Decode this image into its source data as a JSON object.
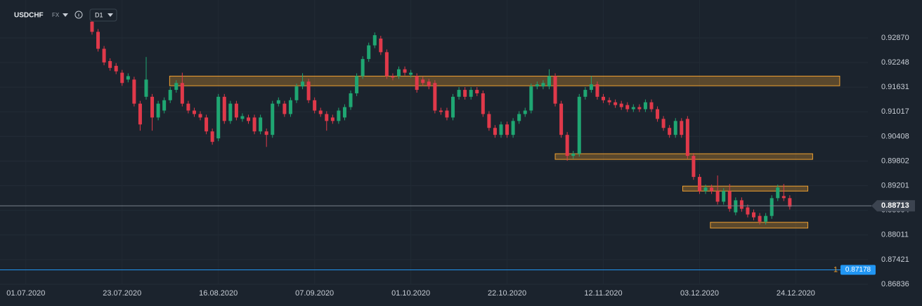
{
  "chart_data": {
    "type": "candlestick",
    "symbol": "USDCHF",
    "market": "FX",
    "timeframe": "D1",
    "log_scale": true,
    "grid": true,
    "up_color": "#1fa672",
    "down_color": "#e0394a",
    "zone_color": "#f0a030",
    "xlim": [
      -4.3,
      139.4
    ],
    "xticks": [
      {
        "value": 0,
        "label": "01.07.2020"
      },
      {
        "value": 16,
        "label": "23.07.2020"
      },
      {
        "value": 32,
        "label": "16.08.2020"
      },
      {
        "value": 48,
        "label": "07.09.2020"
      },
      {
        "value": 64,
        "label": "01.10.2020"
      },
      {
        "value": 80,
        "label": "22.10.2020"
      },
      {
        "value": 96,
        "label": "12.11.2020"
      },
      {
        "value": 112,
        "label": "03.12.2020"
      },
      {
        "value": 128,
        "label": "24.12.2020"
      }
    ],
    "ylim": [
      0.86836,
      0.93835
    ],
    "yticks": [
      {
        "value": 0.9287,
        "label": "0.92870"
      },
      0.92248,
      0.91631,
      0.91017,
      0.90408,
      0.89802,
      0.89201,
      0.88604,
      0.88011,
      0.87421,
      0.86836
    ],
    "x": [
      11,
      12,
      13,
      14,
      15,
      16,
      17,
      18,
      19,
      20,
      21,
      22,
      23,
      24,
      25,
      26,
      27,
      28,
      29,
      30,
      31,
      32,
      33,
      34,
      35,
      36,
      37,
      38,
      39,
      40,
      41,
      42,
      43,
      44,
      45,
      46,
      47,
      48,
      49,
      50,
      51,
      52,
      53,
      54,
      55,
      56,
      57,
      58,
      59,
      60,
      61,
      62,
      63,
      64,
      65,
      66,
      67,
      68,
      69,
      70,
      71,
      72,
      73,
      74,
      75,
      76,
      77,
      78,
      79,
      80,
      81,
      82,
      83,
      84,
      85,
      86,
      87,
      88,
      89,
      90,
      91,
      92,
      93,
      94,
      95,
      96,
      97,
      98,
      99,
      100,
      101,
      102,
      103,
      104,
      105,
      106,
      107,
      108,
      109,
      110,
      111,
      112,
      113,
      114,
      115,
      116,
      117,
      118,
      119,
      120,
      121,
      122,
      123,
      124,
      125,
      126,
      127
    ],
    "open": [
      0.93282,
      0.93024,
      0.92595,
      0.92285,
      0.92165,
      0.91993,
      0.91821,
      0.91821,
      0.9122,
      0.91391,
      0.91391,
      0.90876,
      0.91048,
      0.91305,
      0.91563,
      0.91735,
      0.9122,
      0.91048,
      0.90962,
      0.90876,
      0.90532,
      0.9036,
      0.91391,
      0.9079,
      0.9122,
      0.90841,
      0.90876,
      0.90876,
      0.90532,
      0.90532,
      0.90446,
      0.9122,
      0.9122,
      0.90962,
      0.91305,
      0.91649,
      0.9177,
      0.91305,
      0.91048,
      0.90962,
      0.90876,
      0.9079,
      0.90876,
      0.91134,
      0.91477,
      0.91907,
      0.92337,
      0.92681,
      0.92853,
      0.92509,
      0.91907,
      0.91907,
      0.92079,
      0.91942,
      0.91907,
      0.91821,
      0.9177,
      0.91735,
      0.91048,
      0.91048,
      0.90876,
      0.91391,
      0.91563,
      0.91391,
      0.91563,
      0.91477,
      0.90962,
      0.90618,
      0.90446,
      0.90704,
      0.90446,
      0.9079,
      0.90962,
      0.91048,
      0.91649,
      0.91649,
      0.91649,
      0.91907,
      0.9122,
      0.90446,
      0.8993,
      0.89982,
      0.91391,
      0.91563,
      0.91701,
      0.91391,
      0.91305,
      0.91254,
      0.9122,
      0.91185,
      0.91082,
      0.91134,
      0.91082,
      0.91254,
      0.91082,
      0.90841,
      0.90618,
      0.90446,
      0.9079,
      0.90841,
      0.8993,
      0.89415,
      0.89071,
      0.89157,
      0.89071,
      0.88813,
      0.89071,
      0.88555,
      0.88847,
      0.88675,
      0.88555,
      0.88469,
      0.88332,
      0.88469,
      0.88899,
      0.8895,
      0.88899
    ],
    "high": [
      0.93352,
      0.93094,
      0.92665,
      0.92355,
      0.92235,
      0.92063,
      0.91977,
      0.91891,
      0.9129,
      0.92388,
      0.91461,
      0.9129,
      0.91375,
      0.91633,
      0.91805,
      0.91993,
      0.9129,
      0.91118,
      0.91032,
      0.90946,
      0.90602,
      0.91461,
      0.91461,
      0.9129,
      0.9129,
      0.9098,
      0.90946,
      0.90946,
      0.90946,
      0.90602,
      0.9129,
      0.91375,
      0.9129,
      0.91375,
      0.91719,
      0.9198,
      0.9184,
      0.91375,
      0.91118,
      0.91032,
      0.90946,
      0.91118,
      0.91204,
      0.91547,
      0.91977,
      0.92407,
      0.92751,
      0.93009,
      0.92923,
      0.92579,
      0.91977,
      0.92149,
      0.92149,
      0.92063,
      0.91977,
      0.91891,
      0.9184,
      0.91805,
      0.91118,
      0.91118,
      0.91461,
      0.91633,
      0.91633,
      0.91633,
      0.91633,
      0.91547,
      0.91032,
      0.90688,
      0.90774,
      0.90774,
      0.9086,
      0.91032,
      0.91118,
      0.91719,
      0.91771,
      0.91805,
      0.92079,
      0.91977,
      0.9129,
      0.90516,
      0.90052,
      0.91461,
      0.91633,
      0.91907,
      0.91771,
      0.91461,
      0.91375,
      0.91324,
      0.9129,
      0.91255,
      0.91204,
      0.91204,
      0.91324,
      0.91324,
      0.91152,
      0.90911,
      0.90688,
      0.9086,
      0.9086,
      0.90911,
      0.9,
      0.89485,
      0.89227,
      0.89227,
      0.8945,
      0.89141,
      0.89243,
      0.88917,
      0.88917,
      0.88745,
      0.88625,
      0.88539,
      0.88539,
      0.88969,
      0.89227,
      0.89243,
      0.88969
    ],
    "low": [
      0.92954,
      0.92525,
      0.92181,
      0.92043,
      0.91957,
      0.91665,
      0.91751,
      0.9115,
      0.9055,
      0.91321,
      0.9055,
      0.90806,
      0.90978,
      0.91235,
      0.91493,
      0.9115,
      0.90978,
      0.90892,
      0.90806,
      0.90462,
      0.90204,
      0.9029,
      0.9072,
      0.9072,
      0.90806,
      0.90771,
      0.9072,
      0.90462,
      0.90462,
      0.9015,
      0.90376,
      0.9115,
      0.90892,
      0.90892,
      0.91235,
      0.91579,
      0.91235,
      0.90978,
      0.90892,
      0.9055,
      0.9072,
      0.9072,
      0.90806,
      0.91064,
      0.91407,
      0.91837,
      0.92267,
      0.92611,
      0.92439,
      0.91837,
      0.91803,
      0.91837,
      0.91923,
      0.91872,
      0.91493,
      0.91665,
      0.91579,
      0.90978,
      0.90943,
      0.90806,
      0.90806,
      0.91321,
      0.91321,
      0.91321,
      0.91407,
      0.90892,
      0.90548,
      0.90376,
      0.90376,
      0.90376,
      0.90376,
      0.9072,
      0.90892,
      0.90978,
      0.91579,
      0.91579,
      0.91579,
      0.9115,
      0.90376,
      0.8981,
      0.8986,
      0.89912,
      0.91321,
      0.91493,
      0.91321,
      0.91235,
      0.91184,
      0.91115,
      0.91064,
      0.91012,
      0.91012,
      0.91012,
      0.91012,
      0.91012,
      0.90771,
      0.90548,
      0.90376,
      0.90376,
      0.90376,
      0.8986,
      0.89345,
      0.89001,
      0.89001,
      0.89001,
      0.88743,
      0.88743,
      0.88571,
      0.88485,
      0.88571,
      0.88434,
      0.88365,
      0.88262,
      0.88262,
      0.88399,
      0.88829,
      0.88829,
      0.88623
    ],
    "close": [
      0.93024,
      0.92595,
      0.92251,
      0.92113,
      0.92027,
      0.91735,
      0.91907,
      0.9122,
      0.90704,
      0.91821,
      0.90876,
      0.9122,
      0.91305,
      0.91563,
      0.91735,
      0.9122,
      0.91048,
      0.90962,
      0.90876,
      0.90532,
      0.90274,
      0.91391,
      0.9079,
      0.9122,
      0.90876,
      0.9091,
      0.9079,
      0.90532,
      0.90876,
      0.90446,
      0.9122,
      0.91305,
      0.90962,
      0.91305,
      0.91649,
      0.9177,
      0.91305,
      0.91048,
      0.90962,
      0.9079,
      0.9079,
      0.91048,
      0.91134,
      0.91477,
      0.91907,
      0.92337,
      0.92681,
      0.92939,
      0.92509,
      0.91907,
      0.91873,
      0.92079,
      0.91993,
      0.91993,
      0.91563,
      0.91735,
      0.91649,
      0.91048,
      0.91013,
      0.90876,
      0.91391,
      0.91563,
      0.91391,
      0.91563,
      0.91477,
      0.90962,
      0.90618,
      0.90446,
      0.90704,
      0.90446,
      0.9079,
      0.90962,
      0.91048,
      0.91649,
      0.91701,
      0.91735,
      0.91907,
      0.9122,
      0.90446,
      0.8993,
      0.89982,
      0.91391,
      0.91563,
      0.91701,
      0.91391,
      0.91305,
      0.91254,
      0.91185,
      0.91134,
      0.91082,
      0.91134,
      0.91082,
      0.91254,
      0.91082,
      0.90841,
      0.90618,
      0.90446,
      0.9079,
      0.90446,
      0.8993,
      0.89415,
      0.89071,
      0.89157,
      0.89071,
      0.88813,
      0.89071,
      0.88641,
      0.88847,
      0.88641,
      0.88504,
      0.88435,
      0.88332,
      0.88469,
      0.88899,
      0.89157,
      0.88899,
      0.88693
    ],
    "zones": [
      {
        "x": [
          23.9,
          135.3
        ],
        "y": [
          0.91666,
          0.91907
        ]
      },
      {
        "x": [
          88.0,
          130.8
        ],
        "y": [
          0.89844,
          0.89982
        ]
      },
      {
        "x": [
          109.2,
          130.0
        ],
        "y": [
          0.89071,
          0.89191
        ]
      },
      {
        "x": [
          113.8,
          130.0
        ],
        "y": [
          0.88177,
          0.88315
        ]
      }
    ],
    "price_line": {
      "value": 0.88713,
      "color": "#7a828c"
    },
    "order_line": {
      "value": 0.87178,
      "count": 1,
      "color": "#2196f3"
    }
  }
}
